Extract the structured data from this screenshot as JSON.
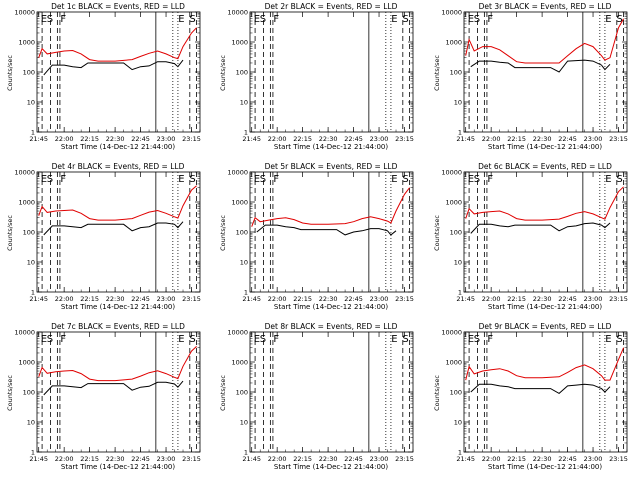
{
  "figure": {
    "xlabel": "Start Time (14-Dec-12 21:44:00)",
    "ylabel": "Counts/sec"
  },
  "colors": {
    "events": "#000000",
    "lld": "#e00000",
    "axes": "#000000"
  },
  "x_ticks": [
    "21:45",
    "22:00",
    "22:15",
    "22:30",
    "22:45",
    "23:00",
    "23:15"
  ],
  "y_ticks": [
    "1",
    "10",
    "100",
    "1000",
    "10000"
  ],
  "chart_data": [
    {
      "type": "line",
      "title": "Det 1c BLACK = Events, RED = LLD",
      "has_data": true,
      "ylim": [
        1,
        10000
      ],
      "xlim": [
        "21:44",
        "23:20"
      ],
      "markers": {
        "S1": "21:45",
        "F1": "21:56",
        "E": "23:06",
        "S2": "23:12"
      },
      "series": [
        {
          "name": "Events",
          "x": [
            "21:48",
            "21:53",
            "22:00",
            "22:05",
            "22:10",
            "22:14",
            "22:20",
            "22:30",
            "22:35",
            "22:40",
            "22:45",
            "22:50",
            "22:55",
            "23:00",
            "23:05",
            "23:07",
            "23:10"
          ],
          "values": [
            80,
            170,
            170,
            150,
            140,
            200,
            200,
            200,
            200,
            120,
            150,
            160,
            220,
            220,
            190,
            150,
            250
          ]
        },
        {
          "name": "LLD",
          "x": [
            "21:45",
            "21:47",
            "21:50",
            "21:55",
            "22:00",
            "22:05",
            "22:10",
            "22:15",
            "22:20",
            "22:30",
            "22:40",
            "22:45",
            "22:50",
            "22:55",
            "23:00",
            "23:05",
            "23:07",
            "23:10",
            "23:15",
            "23:18"
          ],
          "values": [
            300,
            600,
            400,
            450,
            500,
            520,
            400,
            260,
            230,
            230,
            260,
            330,
            420,
            500,
            400,
            300,
            280,
            700,
            2000,
            3000
          ]
        }
      ]
    },
    {
      "type": "line",
      "title": "Det 2r BLACK = Events, RED = LLD",
      "has_data": false,
      "ylim": [
        1,
        10000
      ],
      "xlim": [
        "21:44",
        "23:20"
      ],
      "markers": {
        "S1": "21:45",
        "F1": "21:56",
        "E": "23:06",
        "S2": "23:12"
      },
      "series": []
    },
    {
      "type": "line",
      "title": "Det 3r BLACK = Events, RED = LLD",
      "has_data": true,
      "ylim": [
        1,
        10000
      ],
      "xlim": [
        "21:44",
        "23:20"
      ],
      "markers": {
        "S1": "21:45",
        "F1": "21:56",
        "E": "23:06",
        "S2": "23:12"
      },
      "series": [
        {
          "name": "Events",
          "x": [
            "21:48",
            "21:53",
            "22:00",
            "22:05",
            "22:10",
            "22:14",
            "22:20",
            "22:30",
            "22:35",
            "22:40",
            "22:45",
            "22:50",
            "22:55",
            "23:00",
            "23:05",
            "23:07",
            "23:10"
          ],
          "values": [
            150,
            230,
            230,
            210,
            200,
            140,
            140,
            140,
            140,
            100,
            230,
            240,
            250,
            230,
            170,
            120,
            180
          ]
        },
        {
          "name": "LLD",
          "x": [
            "21:45",
            "21:47",
            "21:50",
            "21:55",
            "22:00",
            "22:05",
            "22:10",
            "22:15",
            "22:20",
            "22:30",
            "22:40",
            "22:45",
            "22:50",
            "22:55",
            "23:00",
            "23:05",
            "23:07",
            "23:10",
            "23:15",
            "23:18"
          ],
          "values": [
            350,
            1200,
            500,
            700,
            700,
            550,
            350,
            220,
            200,
            200,
            200,
            350,
            600,
            900,
            700,
            350,
            250,
            300,
            3000,
            6000
          ]
        }
      ]
    },
    {
      "type": "line",
      "title": "Det 4r BLACK = Events, RED = LLD",
      "has_data": true,
      "ylim": [
        1,
        10000
      ],
      "xlim": [
        "21:44",
        "23:20"
      ],
      "markers": {
        "S1": "21:45",
        "F1": "21:56",
        "E": "23:06",
        "S2": "23:12"
      },
      "series": [
        {
          "name": "Events",
          "x": [
            "21:48",
            "21:53",
            "22:00",
            "22:05",
            "22:10",
            "22:14",
            "22:20",
            "22:30",
            "22:35",
            "22:40",
            "22:45",
            "22:50",
            "22:55",
            "23:00",
            "23:05",
            "23:07",
            "23:10"
          ],
          "values": [
            80,
            160,
            160,
            150,
            140,
            180,
            180,
            180,
            180,
            110,
            140,
            150,
            200,
            200,
            180,
            140,
            220
          ]
        },
        {
          "name": "LLD",
          "x": [
            "21:45",
            "21:47",
            "21:50",
            "21:55",
            "22:00",
            "22:05",
            "22:10",
            "22:15",
            "22:20",
            "22:30",
            "22:40",
            "22:45",
            "22:50",
            "22:55",
            "23:00",
            "23:05",
            "23:07",
            "23:10",
            "23:15",
            "23:18"
          ],
          "values": [
            350,
            700,
            450,
            500,
            520,
            540,
            420,
            280,
            250,
            250,
            280,
            360,
            460,
            520,
            420,
            320,
            290,
            750,
            2500,
            3500
          ]
        }
      ]
    },
    {
      "type": "line",
      "title": "Det 5r BLACK = Events, RED = LLD",
      "has_data": true,
      "ylim": [
        1,
        10000
      ],
      "xlim": [
        "21:44",
        "23:20"
      ],
      "markers": {
        "S1": "21:45",
        "F1": "21:56",
        "E": "23:06",
        "S2": "23:12"
      },
      "series": [
        {
          "name": "Events",
          "x": [
            "21:48",
            "21:53",
            "22:00",
            "22:05",
            "22:10",
            "22:14",
            "22:20",
            "22:30",
            "22:35",
            "22:40",
            "22:45",
            "22:50",
            "22:55",
            "23:00",
            "23:05",
            "23:07",
            "23:10"
          ],
          "values": [
            100,
            170,
            170,
            150,
            140,
            120,
            120,
            120,
            120,
            80,
            100,
            110,
            130,
            130,
            110,
            80,
            110
          ]
        },
        {
          "name": "LLD",
          "x": [
            "21:45",
            "21:47",
            "21:50",
            "21:55",
            "22:00",
            "22:05",
            "22:10",
            "22:15",
            "22:20",
            "22:30",
            "22:40",
            "22:45",
            "22:50",
            "22:55",
            "23:00",
            "23:05",
            "23:07",
            "23:10",
            "23:15",
            "23:18"
          ],
          "values": [
            150,
            300,
            220,
            250,
            280,
            300,
            260,
            200,
            180,
            180,
            190,
            220,
            280,
            320,
            280,
            230,
            200,
            500,
            1800,
            3000
          ]
        }
      ]
    },
    {
      "type": "line",
      "title": "Det 6c BLACK = Events, RED = LLD",
      "has_data": true,
      "ylim": [
        1,
        10000
      ],
      "xlim": [
        "21:44",
        "23:20"
      ],
      "markers": {
        "S1": "21:45",
        "F1": "21:56",
        "E": "23:06",
        "S2": "23:12"
      },
      "series": [
        {
          "name": "Events",
          "x": [
            "21:48",
            "21:53",
            "22:00",
            "22:05",
            "22:10",
            "22:14",
            "22:20",
            "22:30",
            "22:35",
            "22:40",
            "22:45",
            "22:50",
            "22:55",
            "23:00",
            "23:05",
            "23:07",
            "23:10"
          ],
          "values": [
            90,
            180,
            180,
            160,
            150,
            170,
            170,
            170,
            170,
            110,
            150,
            160,
            190,
            200,
            170,
            140,
            200
          ]
        },
        {
          "name": "LLD",
          "x": [
            "21:45",
            "21:47",
            "21:50",
            "21:55",
            "22:00",
            "22:05",
            "22:10",
            "22:15",
            "22:20",
            "22:30",
            "22:40",
            "22:45",
            "22:50",
            "22:55",
            "23:00",
            "23:05",
            "23:07",
            "23:10",
            "23:15",
            "23:18"
          ],
          "values": [
            280,
            600,
            400,
            450,
            480,
            500,
            400,
            280,
            250,
            250,
            270,
            330,
            420,
            480,
            400,
            300,
            270,
            650,
            2200,
            3200
          ]
        }
      ]
    },
    {
      "type": "line",
      "title": "Det 7c BLACK = Events, RED = LLD",
      "has_data": true,
      "ylim": [
        1,
        10000
      ],
      "xlim": [
        "21:44",
        "23:20"
      ],
      "markers": {
        "S1": "21:45",
        "F1": "21:56",
        "E": "23:06",
        "S2": "23:12"
      },
      "series": [
        {
          "name": "Events",
          "x": [
            "21:48",
            "21:53",
            "22:00",
            "22:05",
            "22:10",
            "22:14",
            "22:20",
            "22:30",
            "22:35",
            "22:40",
            "22:45",
            "22:50",
            "22:55",
            "23:00",
            "23:05",
            "23:07",
            "23:10"
          ],
          "values": [
            80,
            160,
            160,
            150,
            140,
            190,
            190,
            190,
            190,
            115,
            145,
            155,
            210,
            210,
            185,
            145,
            230
          ]
        },
        {
          "name": "LLD",
          "x": [
            "21:45",
            "21:47",
            "21:50",
            "21:55",
            "22:00",
            "22:05",
            "22:10",
            "22:15",
            "22:20",
            "22:30",
            "22:40",
            "22:45",
            "22:50",
            "22:55",
            "23:00",
            "23:05",
            "23:07",
            "23:10",
            "23:15",
            "23:18"
          ],
          "values": [
            320,
            650,
            420,
            470,
            500,
            520,
            410,
            270,
            240,
            240,
            270,
            340,
            440,
            510,
            410,
            310,
            280,
            720,
            2300,
            3300
          ]
        }
      ]
    },
    {
      "type": "line",
      "title": "Det 8r BLACK = Events, RED = LLD",
      "has_data": false,
      "ylim": [
        1,
        10000
      ],
      "xlim": [
        "21:44",
        "23:20"
      ],
      "markers": {
        "S1": "21:45",
        "F1": "21:56",
        "E": "23:06",
        "S2": "23:12"
      },
      "series": []
    },
    {
      "type": "line",
      "title": "Det 9r BLACK = Events, RED = LLD",
      "has_data": true,
      "ylim": [
        1,
        10000
      ],
      "xlim": [
        "21:44",
        "23:20"
      ],
      "markers": {
        "S1": "21:45",
        "F1": "21:56",
        "E": "23:06",
        "S2": "23:12"
      },
      "series": [
        {
          "name": "Events",
          "x": [
            "21:48",
            "21:53",
            "22:00",
            "22:05",
            "22:10",
            "22:14",
            "22:20",
            "22:30",
            "22:35",
            "22:40",
            "22:45",
            "22:50",
            "22:55",
            "23:00",
            "23:05",
            "23:07",
            "23:10"
          ],
          "values": [
            100,
            180,
            180,
            160,
            150,
            130,
            130,
            130,
            130,
            90,
            160,
            170,
            180,
            170,
            130,
            100,
            150
          ]
        },
        {
          "name": "LLD",
          "x": [
            "21:45",
            "21:47",
            "21:50",
            "21:55",
            "22:00",
            "22:05",
            "22:10",
            "22:15",
            "22:20",
            "22:30",
            "22:40",
            "22:45",
            "22:50",
            "22:55",
            "23:00",
            "23:05",
            "23:07",
            "23:10",
            "23:15",
            "23:18"
          ],
          "values": [
            250,
            700,
            400,
            500,
            550,
            600,
            500,
            350,
            300,
            300,
            320,
            450,
            650,
            800,
            600,
            350,
            250,
            250,
            1200,
            3000
          ]
        }
      ]
    }
  ]
}
